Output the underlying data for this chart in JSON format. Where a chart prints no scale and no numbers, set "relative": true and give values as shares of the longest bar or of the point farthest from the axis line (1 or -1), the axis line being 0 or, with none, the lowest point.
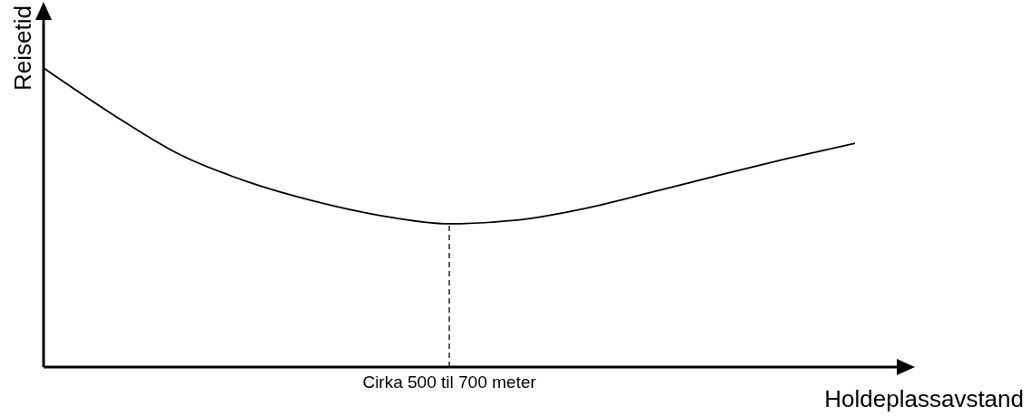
{
  "chart_data": {
    "type": "line",
    "xlabel": "Holdeplassavstand",
    "ylabel": "Reisetid",
    "relative": true,
    "color": "#000000",
    "marker": "none",
    "categories": [
      null,
      null,
      null,
      null,
      null,
      null,
      null,
      null,
      null,
      null,
      null,
      null,
      null
    ],
    "values": [
      1,
      0.848,
      0.712,
      0.621,
      0.555,
      0.506,
      0.479,
      0.491,
      0.53,
      0.585,
      0.642,
      0.697,
      0.748
    ],
    "annotations": [
      "Cirka 500 til 700 meter"
    ]
  }
}
